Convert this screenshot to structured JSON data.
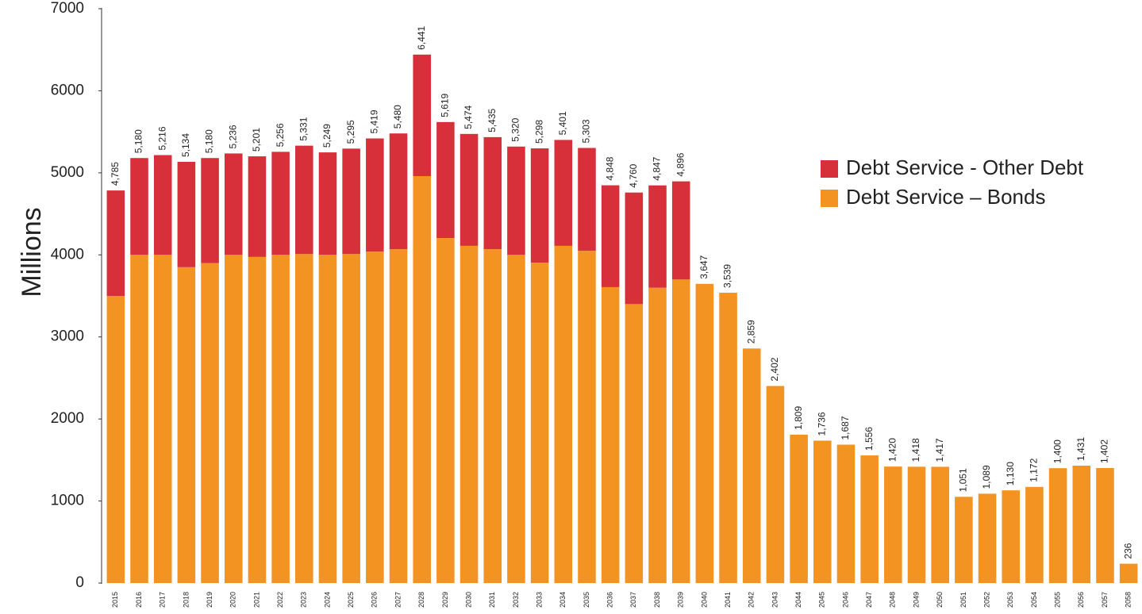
{
  "chart_data": {
    "type": "stacked_bar",
    "y_label": "Millions",
    "categories": [
      "2015",
      "2016",
      "2017",
      "2018",
      "2019",
      "2020",
      "2021",
      "2022",
      "2023",
      "2024",
      "2025",
      "2026",
      "2027",
      "2028",
      "2029",
      "2030",
      "2031",
      "2032",
      "2033",
      "2034",
      "2035",
      "2036",
      "2037",
      "2038",
      "2039",
      "2040",
      "2041",
      "2042",
      "2043",
      "2044",
      "2045",
      "2046",
      "2047",
      "2048",
      "2049",
      "2050",
      "2051",
      "2052",
      "2053",
      "2054",
      "2055",
      "2056",
      "2057",
      "2058"
    ],
    "series": [
      {
        "name": "Debt Service – Bonds",
        "color": "#f39322",
        "values": [
          3500,
          4000,
          4000,
          3850,
          3900,
          4000,
          3975,
          4000,
          4010,
          4000,
          4010,
          4040,
          4070,
          4960,
          4205,
          4110,
          4070,
          4000,
          3905,
          4110,
          4050,
          3607,
          3400,
          3600,
          3700,
          3647,
          3539,
          2859,
          2402,
          1809,
          1736,
          1687,
          1556,
          1420,
          1418,
          1417,
          1051,
          1089,
          1130,
          1172,
          1400,
          1431,
          1402,
          236
        ]
      },
      {
        "name": "Debt Service - Other Debt",
        "color": "#d7303a",
        "values": [
          1285,
          1180,
          1216,
          1284,
          1280,
          1236,
          1226,
          1256,
          1321,
          1249,
          1285,
          1379,
          1410,
          1481,
          1414,
          1364,
          1365,
          1320,
          1393,
          1291,
          1253,
          1241,
          1360,
          1247,
          1196,
          0,
          0,
          0,
          0,
          0,
          0,
          0,
          0,
          0,
          0,
          0,
          0,
          0,
          0,
          0,
          0,
          0,
          0,
          0
        ]
      }
    ],
    "total_labels": [
      "4,785",
      "5,180",
      "5,216",
      "5,134",
      "5,180",
      "5,236",
      "5,201",
      "5,256",
      "5,331",
      "5,249",
      "5,295",
      "5,419",
      "5,480",
      "6,441",
      "5,619",
      "5,474",
      "5,435",
      "5,320",
      "5,298",
      "5,401",
      "5,303",
      "4,848",
      "4,760",
      "4,847",
      "4,896",
      "3,647",
      "3,539",
      "2,859",
      "2,402",
      "1,809",
      "1,736",
      "1,687",
      "1,556",
      "1,420",
      "1,418",
      "1,417",
      "1,051",
      "1,089",
      "1,130",
      "1,172",
      "1,400",
      "1,431",
      "1,402",
      "236"
    ],
    "ylim": [
      0,
      7000
    ],
    "yticks": [
      0,
      1000,
      2000,
      3000,
      4000,
      5000,
      6000,
      7000
    ],
    "legend": "upper right"
  }
}
